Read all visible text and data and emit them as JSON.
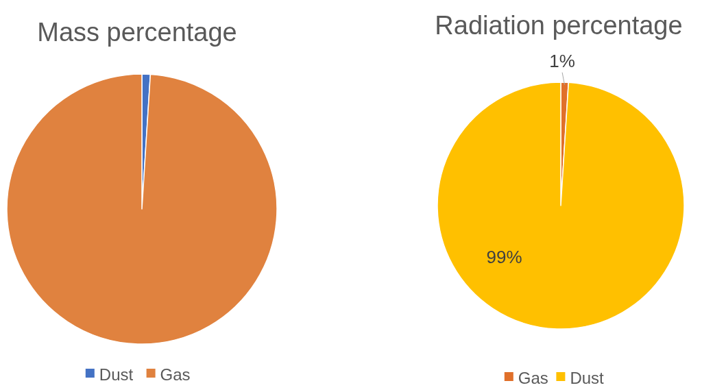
{
  "chart_data": [
    {
      "type": "pie",
      "title": "Mass percentage",
      "categories": [
        "Dust",
        "Gas"
      ],
      "values": [
        1,
        99
      ],
      "colors": [
        "#4472c4",
        "#e0823f"
      ],
      "legend": "bottom"
    },
    {
      "type": "pie",
      "title": "Radiation percentage",
      "categories": [
        "Gas",
        "Dust"
      ],
      "values": [
        1,
        99
      ],
      "colors": [
        "#e0702a",
        "#ffc000"
      ],
      "legend": "bottom",
      "value_labels": [
        "1%",
        "99%"
      ]
    }
  ]
}
